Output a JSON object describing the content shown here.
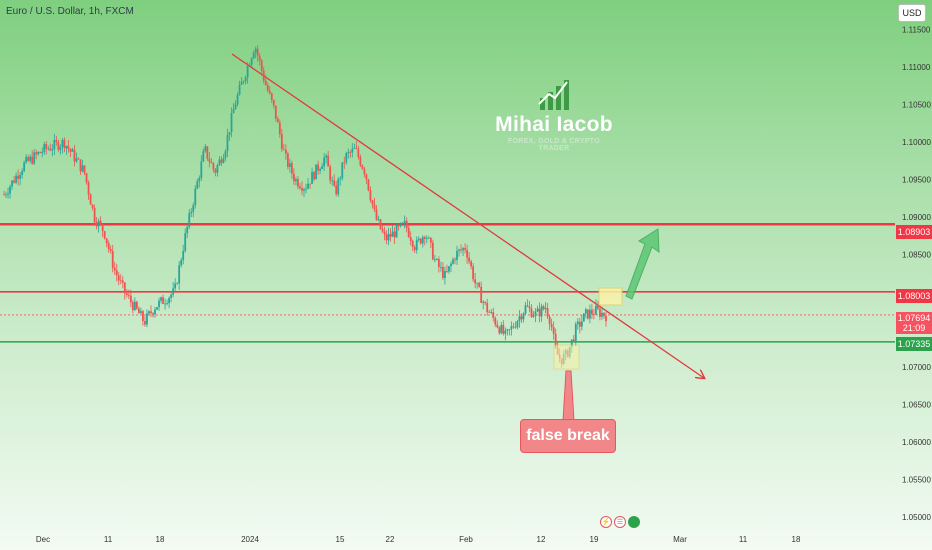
{
  "header": {
    "symbol": "Euro / U.S. Dollar, 1h, FXCM",
    "currency": "USD"
  },
  "branding": {
    "name": "Mihai Iacob",
    "tagline": "FOREX, GOLD & CRYPTO TRADER",
    "logo_icon": "growth-chart-icon"
  },
  "annotation": {
    "label": "false break"
  },
  "colors": {
    "resistance": "#f23645",
    "support": "#2ca24d",
    "trendline": "#e0393e",
    "candle_up": "#26a69a",
    "candle_down": "#ef5350",
    "projection": "#5cc873"
  },
  "toolbar_icons": [
    "lightning-icon",
    "alert-icon",
    "replay-icon"
  ],
  "chart_data": {
    "type": "candlestick",
    "title": "Euro / U.S. Dollar, 1h, FXCM",
    "y_ticks": [
      "1.11500",
      "1.11000",
      "1.10500",
      "1.10000",
      "1.09500",
      "1.09000",
      "1.08500",
      "1.08000",
      "1.07500",
      "1.07000",
      "1.06500",
      "1.06000",
      "1.05500",
      "1.05000"
    ],
    "x_ticks": [
      "Dec",
      "11",
      "18",
      "2024",
      "15",
      "22",
      "Feb",
      "12",
      "19",
      "Mar",
      "11",
      "18"
    ],
    "ylim": [
      1.0492,
      1.1172
    ],
    "horizontal_levels": [
      {
        "price": 1.08903,
        "label": "1.08903",
        "role": "resistance"
      },
      {
        "price": 1.08003,
        "label": "1.08003",
        "role": "resistance"
      },
      {
        "price": 1.07335,
        "label": "1.07335",
        "role": "support"
      }
    ],
    "current_price": {
      "label": "1.07694",
      "countdown": "21:09"
    },
    "price_path": [
      [
        0,
        1.093
      ],
      [
        4,
        1.097
      ],
      [
        8,
        1.099
      ],
      [
        12,
        1.1
      ],
      [
        16,
        1.096
      ],
      [
        18,
        1.09
      ],
      [
        20,
        1.088
      ],
      [
        22,
        1.083
      ],
      [
        24,
        1.08
      ],
      [
        26,
        1.078
      ],
      [
        28,
        1.076
      ],
      [
        30,
        1.078
      ],
      [
        32,
        1.079
      ],
      [
        34,
        1.08
      ],
      [
        36,
        1.087
      ],
      [
        38,
        1.093
      ],
      [
        40,
        1.099
      ],
      [
        42,
        1.096
      ],
      [
        44,
        1.099
      ],
      [
        46,
        1.105
      ],
      [
        48,
        1.109
      ],
      [
        50,
        1.113
      ],
      [
        52,
        1.108
      ],
      [
        54,
        1.104
      ],
      [
        56,
        1.098
      ],
      [
        58,
        1.095
      ],
      [
        60,
        1.094
      ],
      [
        62,
        1.096
      ],
      [
        64,
        1.098
      ],
      [
        66,
        1.093
      ],
      [
        68,
        1.098
      ],
      [
        70,
        1.099
      ],
      [
        72,
        1.096
      ],
      [
        74,
        1.09
      ],
      [
        76,
        1.087
      ],
      [
        78,
        1.088
      ],
      [
        80,
        1.089
      ],
      [
        82,
        1.086
      ],
      [
        84,
        1.088
      ],
      [
        86,
        1.084
      ],
      [
        88,
        1.082
      ],
      [
        90,
        1.085
      ],
      [
        92,
        1.086
      ],
      [
        94,
        1.081
      ],
      [
        96,
        1.078
      ],
      [
        98,
        1.076
      ],
      [
        100,
        1.074
      ],
      [
        102,
        1.076
      ],
      [
        104,
        1.078
      ],
      [
        106,
        1.077
      ],
      [
        108,
        1.078
      ],
      [
        109,
        1.076
      ],
      [
        110,
        1.072
      ],
      [
        111,
        1.071
      ],
      [
        112,
        1.0715
      ],
      [
        113,
        1.073
      ],
      [
        114,
        1.075
      ],
      [
        115,
        1.076
      ],
      [
        116,
        1.077
      ],
      [
        118,
        1.0775
      ],
      [
        120,
        1.0769
      ]
    ],
    "trendline": {
      "from": [
        1,
        1.1132
      ],
      "to": [
        2,
        1.0692
      ],
      "color": "red",
      "arrow": true
    },
    "projection": {
      "from": [
        3,
        1.0803
      ],
      "to": [
        4,
        1.0893
      ],
      "color": "green",
      "arrow": true
    },
    "grid": false,
    "legend": "none"
  }
}
